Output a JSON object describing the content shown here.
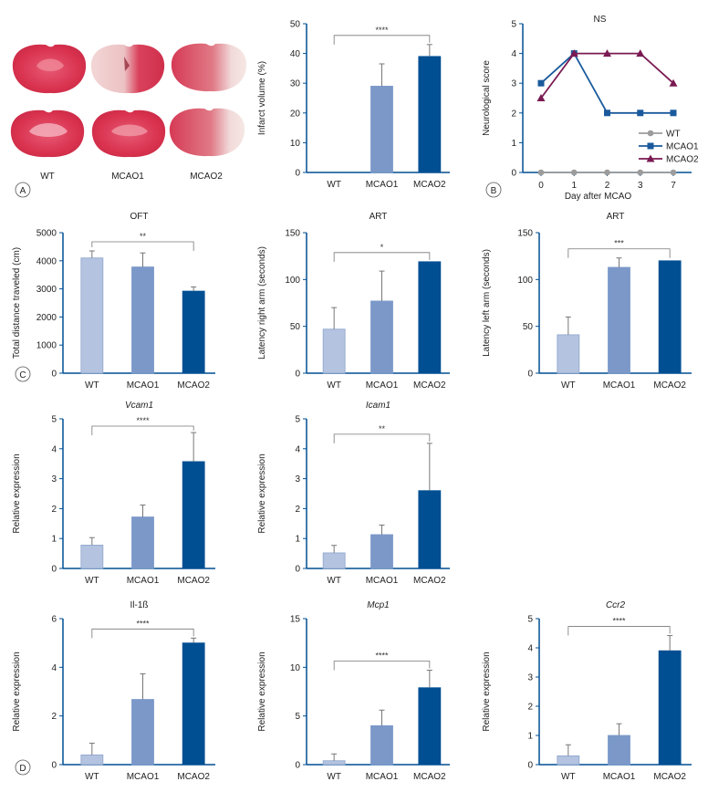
{
  "colors": {
    "wt": "#b3c3e0",
    "mcao1": "#7b98c9",
    "mcao2": "#004f93",
    "axis": "#004f93",
    "sig": "#555555",
    "line_wt": "#9c9c9c",
    "line_mcao1": "#1a5a9c",
    "line_mcao2": "#7a1a52"
  },
  "panel_labels": {
    "a": "A",
    "b": "B",
    "c": "C",
    "d": "D"
  },
  "panel_a": {
    "brain_labels": [
      "WT",
      "MCAO1",
      "MCAO2"
    ]
  },
  "chart_data": [
    {
      "id": "infarct",
      "type": "bar",
      "title": "",
      "ylabel": "Infarct volume (%)",
      "ylim": [
        0,
        50
      ],
      "yticks": [
        0,
        10,
        20,
        30,
        40,
        50
      ],
      "categories": [
        "WT",
        "MCAO1",
        "MCAO2"
      ],
      "values": [
        0,
        29,
        39
      ],
      "errors": [
        0,
        7.5,
        4
      ],
      "sig": {
        "label": "****",
        "from": 0,
        "to": 2
      }
    },
    {
      "id": "ns",
      "type": "line",
      "title": "NS",
      "xlabel": "Day after MCAO",
      "ylabel": "Neurological score",
      "ylim": [
        0,
        5
      ],
      "yticks": [
        0,
        1,
        2,
        3,
        4,
        5
      ],
      "x": [
        "0",
        "1",
        "2",
        "3",
        "7"
      ],
      "series": [
        {
          "name": "WT",
          "values": [
            0,
            0,
            0,
            0,
            0
          ],
          "marker": "circle"
        },
        {
          "name": "MCAO1",
          "values": [
            3,
            4,
            2,
            2,
            2
          ],
          "marker": "square"
        },
        {
          "name": "MCAO2",
          "values": [
            2.5,
            4,
            4,
            4,
            3
          ],
          "marker": "triangle"
        }
      ],
      "legend": "bottom-right"
    },
    {
      "id": "oft",
      "type": "bar",
      "title": "OFT",
      "ylabel": "Total distance traveled (cm)",
      "ylim": [
        0,
        5000
      ],
      "yticks": [
        0,
        1000,
        2000,
        3000,
        4000,
        5000
      ],
      "categories": [
        "WT",
        "MCAO1",
        "MCAO2"
      ],
      "values": [
        4100,
        3780,
        2920
      ],
      "errors": [
        250,
        500,
        150
      ],
      "sig": {
        "label": "**",
        "from": 0,
        "to": 2
      }
    },
    {
      "id": "art_right",
      "type": "bar",
      "title": "ART",
      "ylabel": "Latency right arm (seconds)",
      "ylim": [
        0,
        150
      ],
      "yticks": [
        0,
        50,
        100,
        150
      ],
      "categories": [
        "WT",
        "MCAO1",
        "MCAO2"
      ],
      "values": [
        47,
        77,
        119
      ],
      "errors": [
        23,
        32,
        0
      ],
      "sig": {
        "label": "*",
        "from": 0,
        "to": 2
      }
    },
    {
      "id": "art_left",
      "type": "bar",
      "title": "ART",
      "ylabel": "Latency left arm (seconds)",
      "ylim": [
        0,
        150
      ],
      "yticks": [
        0,
        50,
        100,
        150
      ],
      "categories": [
        "WT",
        "MCAO1",
        "MCAO2"
      ],
      "values": [
        41,
        113,
        120
      ],
      "errors": [
        19,
        10,
        0
      ],
      "sig": {
        "label": "***",
        "from": 0,
        "to": 2
      }
    },
    {
      "id": "vcam1",
      "type": "bar",
      "title": "Vcam1",
      "title_italic": true,
      "ylabel": "Relative expression",
      "ylim": [
        0,
        5
      ],
      "yticks": [
        0,
        1,
        2,
        3,
        4,
        5
      ],
      "categories": [
        "WT",
        "MCAO1",
        "MCAO2"
      ],
      "values": [
        0.78,
        1.72,
        3.57
      ],
      "errors": [
        0.25,
        0.4,
        0.97
      ],
      "sig": {
        "label": "****",
        "from": 0,
        "to": 2
      }
    },
    {
      "id": "icam1",
      "type": "bar",
      "title": "Icam1",
      "title_italic": true,
      "ylabel": "Relative expression",
      "ylim": [
        0,
        5
      ],
      "yticks": [
        0,
        1,
        2,
        3,
        4,
        5
      ],
      "categories": [
        "WT",
        "MCAO1",
        "MCAO2"
      ],
      "values": [
        0.52,
        1.13,
        2.6
      ],
      "errors": [
        0.25,
        0.32,
        1.58
      ],
      "sig": {
        "label": "**",
        "from": 0,
        "to": 2
      }
    },
    {
      "id": "il1b",
      "type": "bar",
      "title": "Il-1ß",
      "title_italic": false,
      "ylabel": "Relative expression",
      "ylim": [
        0,
        6
      ],
      "yticks": [
        0,
        2,
        4,
        6
      ],
      "categories": [
        "WT",
        "MCAO1",
        "MCAO2"
      ],
      "values": [
        0.4,
        2.68,
        5.0
      ],
      "errors": [
        0.48,
        1.05,
        0.2
      ],
      "sig": {
        "label": "****",
        "from": 0,
        "to": 2
      }
    },
    {
      "id": "mcp1",
      "type": "bar",
      "title": "Mcp1",
      "title_italic": true,
      "ylabel": "Relative expression",
      "ylim": [
        0,
        15
      ],
      "yticks": [
        0,
        5,
        10,
        15
      ],
      "categories": [
        "WT",
        "MCAO1",
        "MCAO2"
      ],
      "values": [
        0.4,
        4.0,
        7.9
      ],
      "errors": [
        0.7,
        1.6,
        1.8
      ],
      "sig": {
        "label": "****",
        "from": 0,
        "to": 2
      }
    },
    {
      "id": "ccr2",
      "type": "bar",
      "title": "Ccr2",
      "title_italic": true,
      "ylabel": "Relative expression",
      "ylim": [
        0,
        5
      ],
      "yticks": [
        0,
        1,
        2,
        3,
        4,
        5
      ],
      "categories": [
        "WT",
        "MCAO1",
        "MCAO2"
      ],
      "values": [
        0.3,
        1.0,
        3.9
      ],
      "errors": [
        0.38,
        0.4,
        0.52
      ],
      "sig": {
        "label": "****",
        "from": 0,
        "to": 2
      }
    }
  ]
}
